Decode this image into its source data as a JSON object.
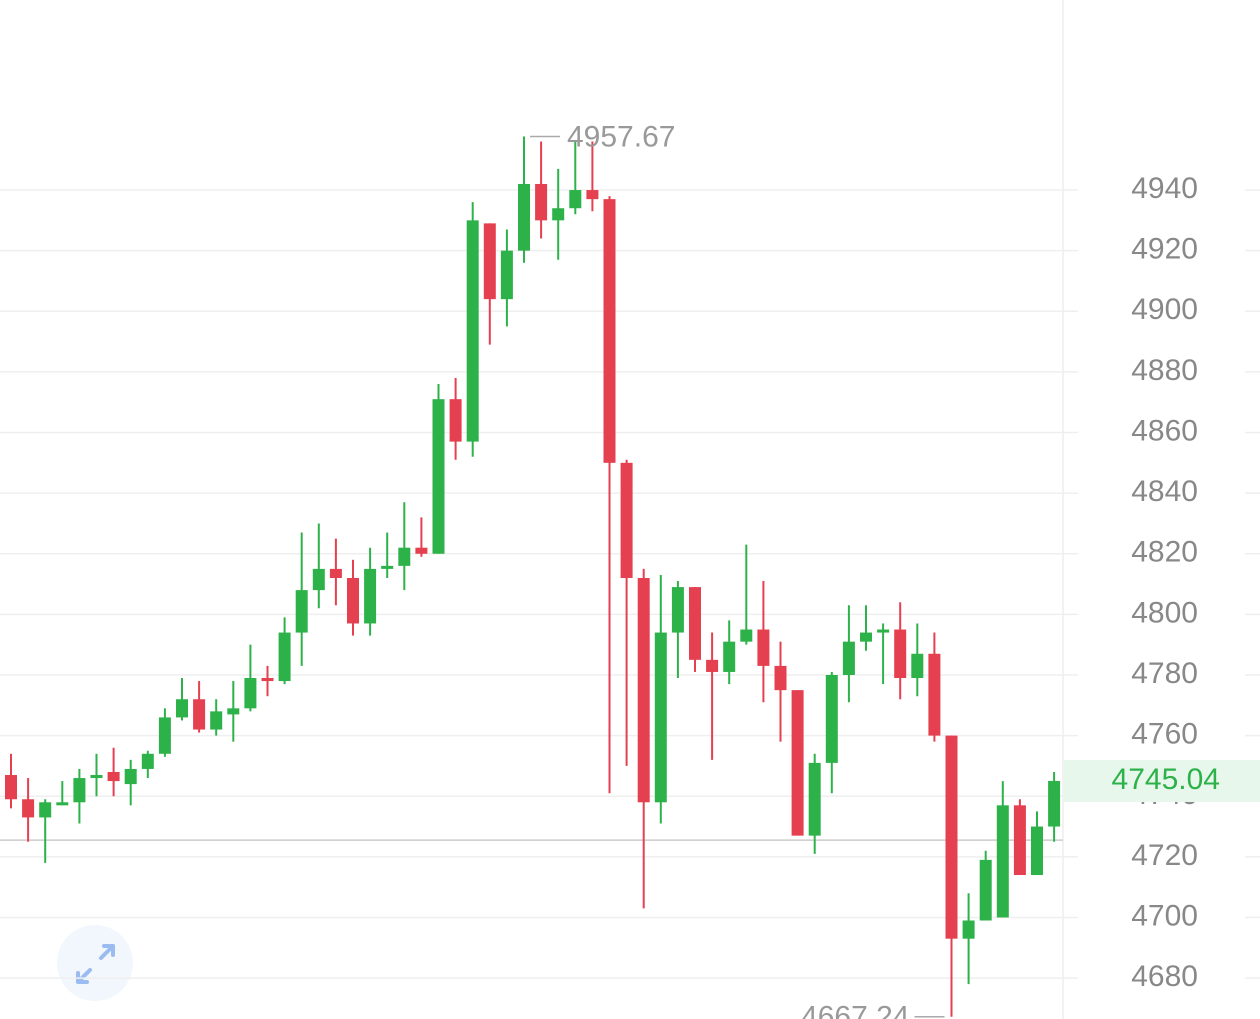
{
  "chart_data": {
    "type": "candlestick",
    "open": [
      4747,
      4739,
      4733,
      4737,
      4738,
      4746,
      4748,
      4744,
      4749,
      4754,
      4766,
      4772,
      4762,
      4767,
      4769,
      4779,
      4778,
      4794,
      4808,
      4815,
      4812,
      4797,
      4815,
      4816,
      4822,
      4820,
      4871,
      4857,
      4929,
      4904,
      4920,
      4942,
      4930,
      4934,
      4940,
      4937,
      4850,
      4812,
      4738,
      4794,
      4809,
      4785,
      4781,
      4791,
      4795,
      4783,
      4775,
      4727,
      4751,
      4780,
      4791,
      4794,
      4795,
      4779,
      4787,
      4760,
      4693,
      4699,
      4700,
      4737,
      4714,
      4730
    ],
    "high": [
      4754,
      4746,
      4739,
      4745,
      4749,
      4754,
      4756,
      4752,
      4755,
      4769,
      4779,
      4778,
      4772,
      4778,
      4790,
      4783,
      4799,
      4827,
      4830,
      4825,
      4818,
      4822,
      4827,
      4837,
      4832,
      4876,
      4878,
      4936,
      4929,
      4927,
      4957.67,
      4956,
      4947,
      4956,
      4956,
      4938,
      4851,
      4815,
      4813,
      4811,
      4809,
      4794,
      4798,
      4823,
      4811,
      4791,
      4775,
      4754,
      4781,
      4803,
      4803,
      4797,
      4804,
      4797,
      4794,
      4760,
      4708,
      4722,
      4745,
      4739,
      4735,
      4748
    ],
    "low": [
      4736,
      4725,
      4718,
      4737,
      4731,
      4740,
      4740,
      4737,
      4746,
      4753,
      4765,
      4761,
      4760,
      4758,
      4768,
      4773,
      4777,
      4783,
      4802,
      4803,
      4793,
      4793,
      4812,
      4808,
      4819,
      4820,
      4851,
      4852,
      4889,
      4895,
      4916,
      4924,
      4917,
      4932,
      4933,
      4741,
      4750,
      4703,
      4731,
      4779,
      4781,
      4752,
      4777,
      4790,
      4771,
      4758,
      4727,
      4721,
      4741,
      4771,
      4788,
      4777,
      4772,
      4773,
      4758,
      4667.24,
      4678,
      4699,
      4700,
      4714,
      4714,
      4725
    ],
    "close": [
      4739,
      4733,
      4738,
      4738,
      4746,
      4747,
      4745,
      4749,
      4754,
      4766,
      4772,
      4762,
      4768,
      4769,
      4779,
      4778,
      4794,
      4808,
      4815,
      4812,
      4797,
      4815,
      4816,
      4822,
      4820,
      4871,
      4857,
      4930,
      4904,
      4920,
      4942,
      4930,
      4934,
      4940,
      4937,
      4850,
      4812,
      4738,
      4794,
      4809,
      4785,
      4781,
      4791,
      4795,
      4783,
      4775,
      4727,
      4751,
      4780,
      4791,
      4794,
      4795,
      4779,
      4787,
      4760,
      4693,
      4699,
      4719,
      4737,
      4714,
      4730,
      4745.04
    ],
    "up_color": "#2db24a",
    "down_color": "#e5404f",
    "ylim": [
      4666.5,
      5002.7
    ],
    "yticks": [
      4680,
      4700,
      4720,
      4740,
      4760,
      4780,
      4800,
      4820,
      4840,
      4860,
      4880,
      4900,
      4920,
      4940
    ],
    "grid": true,
    "ref_line": 4725.5
  }
}
